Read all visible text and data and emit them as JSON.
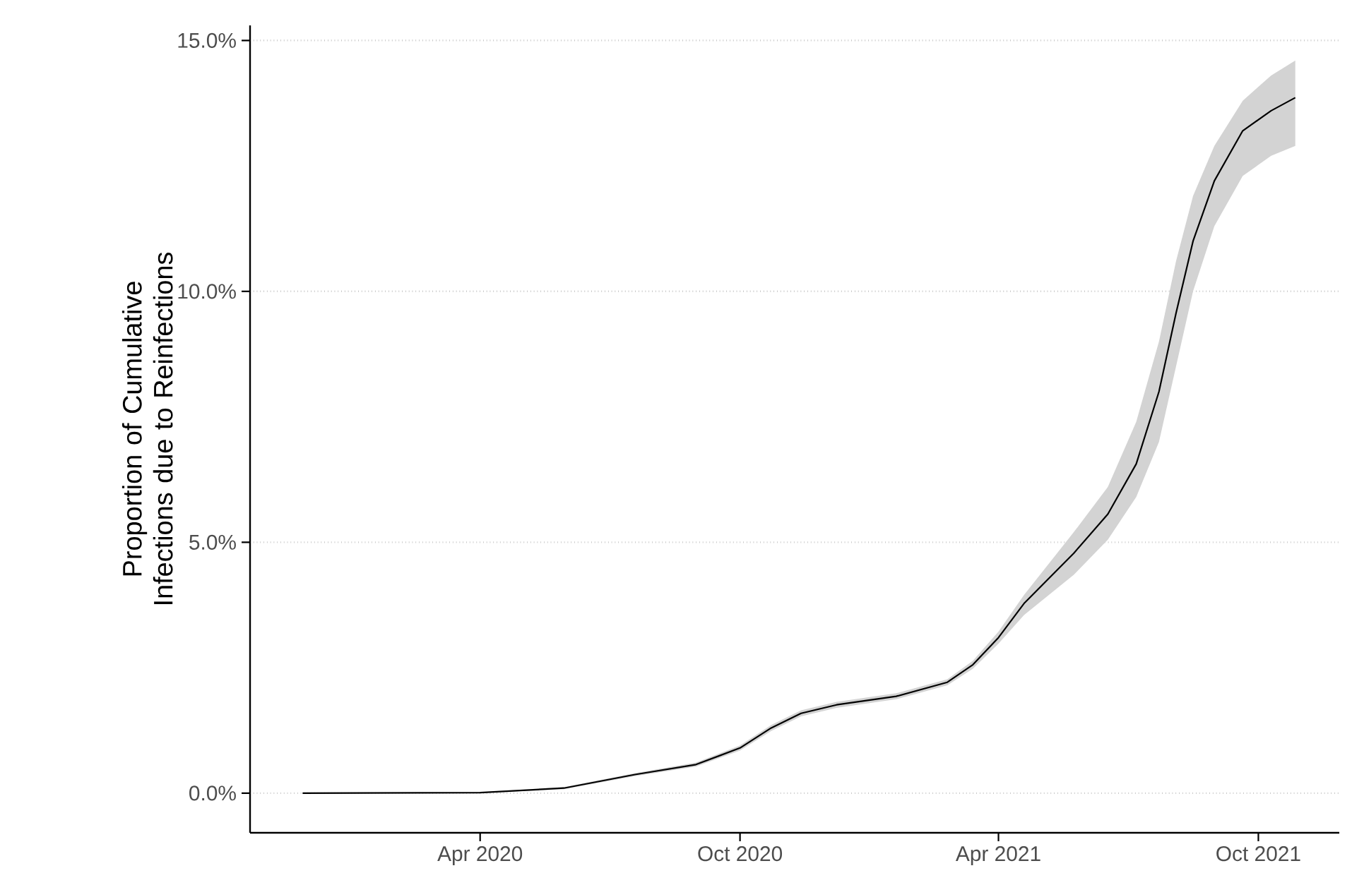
{
  "chart_data": {
    "type": "line",
    "ylabel": "Proportion of Cumulative Infections due to Reinfections",
    "x": [
      "2019-11-28",
      "2020-04-01",
      "2020-05-30",
      "2020-07-19",
      "2020-08-31",
      "2020-10-01",
      "2020-10-23",
      "2020-11-13",
      "2020-12-08",
      "2021-01-19",
      "2021-02-24",
      "2021-03-14",
      "2021-04-01",
      "2021-04-19",
      "2021-05-24",
      "2021-06-17",
      "2021-07-07",
      "2021-07-23",
      "2021-08-04",
      "2021-08-16",
      "2021-08-31",
      "2021-09-20",
      "2021-10-10",
      "2021-10-27"
    ],
    "series": [
      {
        "color": "#000000",
        "values": [
          0,
          0.01,
          0.1,
          0.37,
          0.57,
          0.9,
          1.3,
          1.59,
          1.76,
          1.93,
          2.21,
          2.56,
          3.1,
          3.78,
          4.78,
          5.56,
          6.56,
          8.0,
          9.56,
          11.0,
          12.2,
          13.2,
          13.6,
          13.86
        ],
        "lower": [
          0,
          0.0,
          0.08,
          0.34,
          0.53,
          0.85,
          1.24,
          1.53,
          1.7,
          1.87,
          2.15,
          2.48,
          2.98,
          3.55,
          4.35,
          5.05,
          5.9,
          7.0,
          8.5,
          10.0,
          11.3,
          12.3,
          12.7,
          12.9
        ],
        "upper": [
          0,
          0.02,
          0.12,
          0.4,
          0.61,
          0.95,
          1.36,
          1.65,
          1.82,
          1.99,
          2.27,
          2.64,
          3.22,
          3.95,
          5.2,
          6.1,
          7.4,
          9.0,
          10.6,
          11.9,
          12.9,
          13.8,
          14.3,
          14.6
        ]
      }
    ],
    "xlim": [
      "2019-10-22",
      "2021-11-27"
    ],
    "xticks": [
      {
        "value": "2020-04-01",
        "label": "Apr 2020"
      },
      {
        "value": "2020-10-01",
        "label": "Oct 2020"
      },
      {
        "value": "2021-04-01",
        "label": "Apr 2021"
      },
      {
        "value": "2021-10-01",
        "label": "Oct 2021"
      }
    ],
    "ylim": [
      -0.79,
      15.3
    ],
    "yticks": [
      {
        "value": 0,
        "label": "0.0%"
      },
      {
        "value": 5,
        "label": "5.0%"
      },
      {
        "value": 10,
        "label": "10.0%"
      },
      {
        "value": 15,
        "label": "15.0%"
      }
    ],
    "grid": "y",
    "marker": "none",
    "line_style": "solid"
  }
}
